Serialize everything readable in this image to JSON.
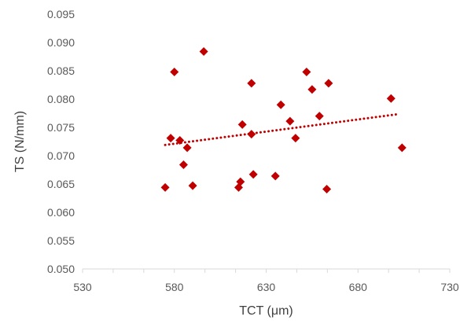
{
  "chart_data": {
    "type": "scatter",
    "title": "",
    "xlabel": "TCT (μm)",
    "ylabel": "TS (N/mm)",
    "xlim": [
      530,
      730
    ],
    "ylim": [
      0.05,
      0.095
    ],
    "x_ticks": [
      530,
      580,
      630,
      680,
      730
    ],
    "x_tick_labels": [
      "530",
      "580",
      "630",
      "680",
      "730"
    ],
    "y_ticks": [
      0.05,
      0.055,
      0.06,
      0.065,
      0.07,
      0.075,
      0.08,
      0.085,
      0.09,
      0.095
    ],
    "y_tick_labels": [
      "0.050",
      "0.055",
      "0.060",
      "0.065",
      "0.070",
      "0.075",
      "0.080",
      "0.085",
      "0.090",
      "0.095"
    ],
    "grid": false,
    "series": [
      {
        "marker": "diamond",
        "color": "#c00000",
        "points": [
          {
            "x": 575,
            "y": 0.0644
          },
          {
            "x": 578,
            "y": 0.0731
          },
          {
            "x": 580,
            "y": 0.0848
          },
          {
            "x": 583,
            "y": 0.0727
          },
          {
            "x": 585,
            "y": 0.0684
          },
          {
            "x": 587,
            "y": 0.0714
          },
          {
            "x": 590,
            "y": 0.0647
          },
          {
            "x": 596,
            "y": 0.0884
          },
          {
            "x": 615,
            "y": 0.0644
          },
          {
            "x": 616,
            "y": 0.0654
          },
          {
            "x": 617,
            "y": 0.0755
          },
          {
            "x": 622,
            "y": 0.0738
          },
          {
            "x": 622,
            "y": 0.0828
          },
          {
            "x": 623,
            "y": 0.0667
          },
          {
            "x": 635,
            "y": 0.0664
          },
          {
            "x": 638,
            "y": 0.079
          },
          {
            "x": 643,
            "y": 0.0761
          },
          {
            "x": 646,
            "y": 0.0731
          },
          {
            "x": 652,
            "y": 0.0848
          },
          {
            "x": 655,
            "y": 0.0817
          },
          {
            "x": 659,
            "y": 0.077
          },
          {
            "x": 663,
            "y": 0.0641
          },
          {
            "x": 664,
            "y": 0.0828
          },
          {
            "x": 698,
            "y": 0.0801
          },
          {
            "x": 704,
            "y": 0.0714
          }
        ]
      }
    ],
    "trendline": {
      "style": "dotted",
      "color": "#c00000",
      "x": [
        575,
        701
      ],
      "y": [
        0.0719,
        0.0773
      ]
    }
  }
}
